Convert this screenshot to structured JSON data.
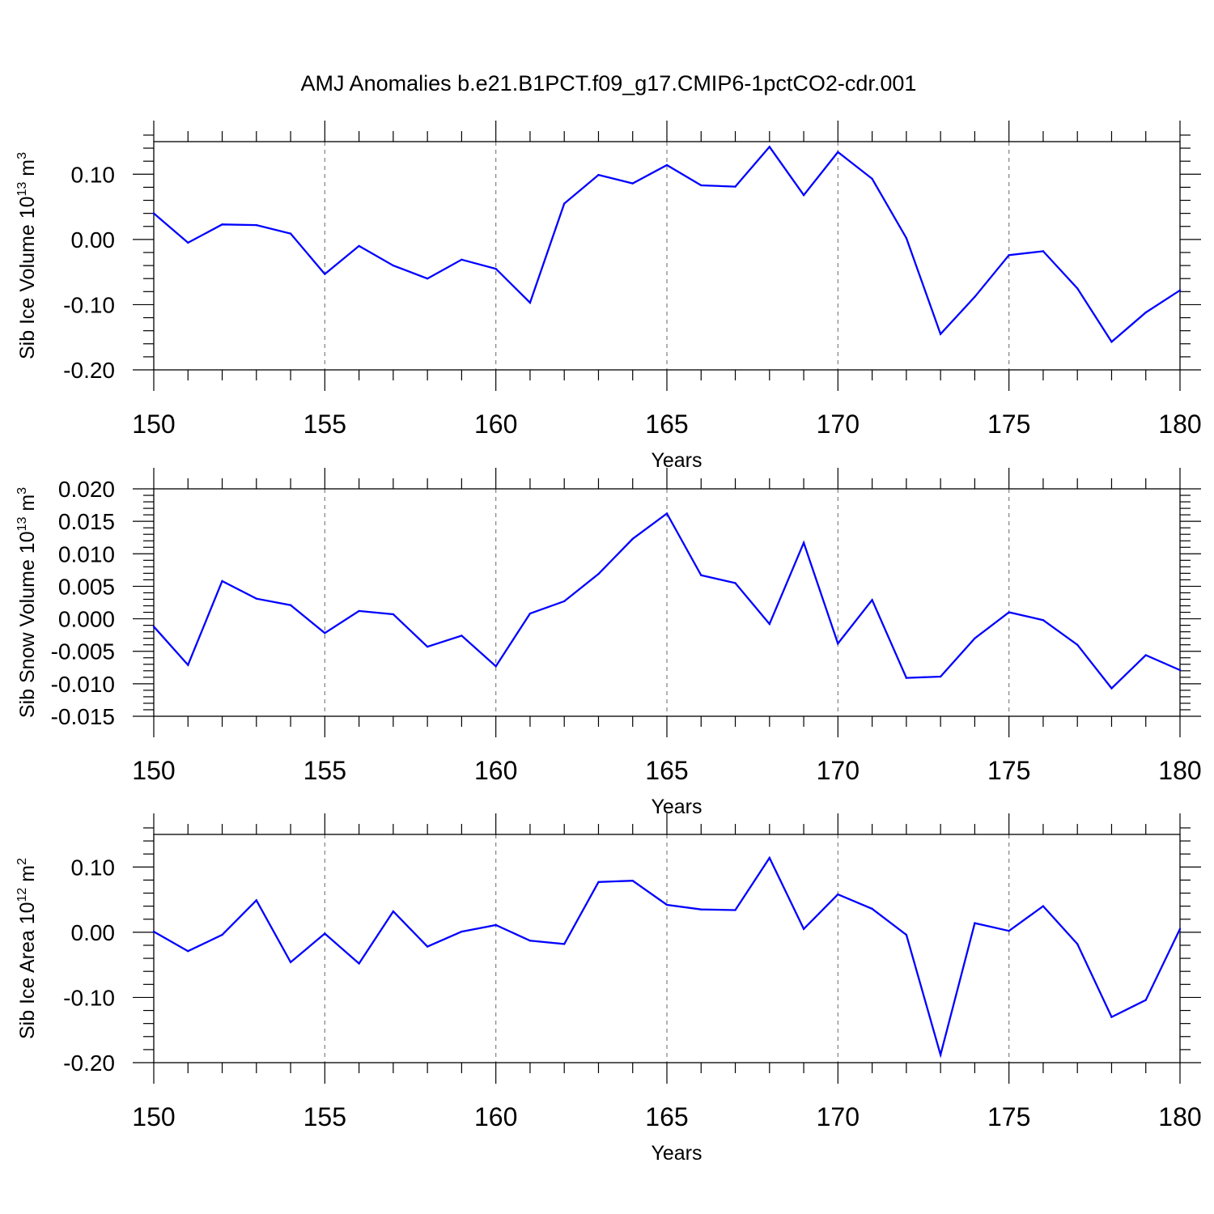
{
  "title": "AMJ Anomalies b.e21.B1PCT.f09_g17.CMIP6-1pctCO2-cdr.001",
  "colors": {
    "line": "#0000ff",
    "axis": "#000000",
    "grid": "#808080",
    "background": "#ffffff"
  },
  "chart_data": [
    {
      "type": "line",
      "xlabel": "Years",
      "ylabel": {
        "text": "Sib Ice Volume 10",
        "exp": "13",
        "unit": " m",
        "unit_exp": "3"
      },
      "xlim": [
        150,
        180
      ],
      "ylim": [
        -0.2,
        0.15
      ],
      "xticks": [
        150,
        155,
        160,
        165,
        170,
        175,
        180
      ],
      "xtick_labels": [
        "150",
        "155",
        "160",
        "165",
        "170",
        "175",
        "180"
      ],
      "yticks": [
        -0.2,
        -0.1,
        0.0,
        0.1
      ],
      "ytick_labels": [
        "-0.20",
        "-0.10",
        "0.00",
        "0.10"
      ],
      "grid": "vertical dashed at major x ticks",
      "x": [
        150,
        151,
        152,
        153,
        154,
        155,
        156,
        157,
        158,
        159,
        160,
        161,
        162,
        163,
        164,
        165,
        166,
        167,
        168,
        169,
        170,
        171,
        172,
        173,
        174,
        175,
        176,
        177,
        178,
        179,
        180
      ],
      "values": [
        0.04,
        -0.005,
        0.023,
        0.022,
        0.009,
        -0.053,
        -0.01,
        -0.04,
        -0.06,
        -0.031,
        -0.045,
        -0.097,
        0.055,
        0.099,
        0.086,
        0.114,
        0.083,
        0.081,
        0.142,
        0.068,
        0.134,
        0.093,
        0.002,
        -0.145,
        -0.088,
        -0.024,
        -0.018,
        -0.075,
        -0.157,
        -0.112,
        -0.078
      ]
    },
    {
      "type": "line",
      "xlabel": "Years",
      "ylabel": {
        "text": "Sib Snow Volume 10",
        "exp": "13",
        "unit": " m",
        "unit_exp": "3"
      },
      "xlim": [
        150,
        180
      ],
      "ylim": [
        -0.015,
        0.02
      ],
      "xticks": [
        150,
        155,
        160,
        165,
        170,
        175,
        180
      ],
      "xtick_labels": [
        "150",
        "155",
        "160",
        "165",
        "170",
        "175",
        "180"
      ],
      "yticks": [
        -0.015,
        -0.01,
        -0.005,
        0.0,
        0.005,
        0.01,
        0.015,
        0.02
      ],
      "ytick_labels": [
        "-0.015",
        "-0.010",
        "-0.005",
        "0.000",
        "0.005",
        "0.010",
        "0.015",
        "0.020"
      ],
      "grid": "vertical dashed at major x ticks",
      "x": [
        150,
        151,
        152,
        153,
        154,
        155,
        156,
        157,
        158,
        159,
        160,
        161,
        162,
        163,
        164,
        165,
        166,
        167,
        168,
        169,
        170,
        171,
        172,
        173,
        174,
        175,
        176,
        177,
        178,
        179,
        180
      ],
      "values": [
        -0.0012,
        -0.0071,
        0.0058,
        0.0031,
        0.0021,
        -0.0022,
        0.0012,
        0.0007,
        -0.0043,
        -0.0026,
        -0.0073,
        0.0008,
        0.0027,
        0.0069,
        0.0123,
        0.0162,
        0.0067,
        0.0055,
        -0.0008,
        0.0117,
        -0.0038,
        0.0029,
        -0.0091,
        -0.0089,
        -0.003,
        0.001,
        -0.0002,
        -0.004,
        -0.0107,
        -0.0056,
        -0.0079
      ]
    },
    {
      "type": "line",
      "xlabel": "Years",
      "ylabel": {
        "text": "Sib Ice Area 10",
        "exp": "12",
        "unit": " m",
        "unit_exp": "2"
      },
      "xlim": [
        150,
        180
      ],
      "ylim": [
        -0.2,
        0.15
      ],
      "xticks": [
        150,
        155,
        160,
        165,
        170,
        175,
        180
      ],
      "xtick_labels": [
        "150",
        "155",
        "160",
        "165",
        "170",
        "175",
        "180"
      ],
      "yticks": [
        -0.2,
        -0.1,
        0.0,
        0.1
      ],
      "ytick_labels": [
        "-0.20",
        "-0.10",
        "0.00",
        "0.10"
      ],
      "grid": "vertical dashed at major x ticks",
      "x": [
        150,
        151,
        152,
        153,
        154,
        155,
        156,
        157,
        158,
        159,
        160,
        161,
        162,
        163,
        164,
        165,
        166,
        167,
        168,
        169,
        170,
        171,
        172,
        173,
        174,
        175,
        176,
        177,
        178,
        179,
        180
      ],
      "values": [
        0.001,
        -0.029,
        -0.004,
        0.049,
        -0.046,
        -0.002,
        -0.048,
        0.032,
        -0.022,
        0.001,
        0.011,
        -0.013,
        -0.018,
        0.077,
        0.079,
        0.042,
        0.035,
        0.034,
        0.114,
        0.005,
        0.058,
        0.036,
        -0.004,
        -0.188,
        0.014,
        0.002,
        0.04,
        -0.018,
        -0.13,
        -0.104,
        0.005
      ]
    }
  ]
}
